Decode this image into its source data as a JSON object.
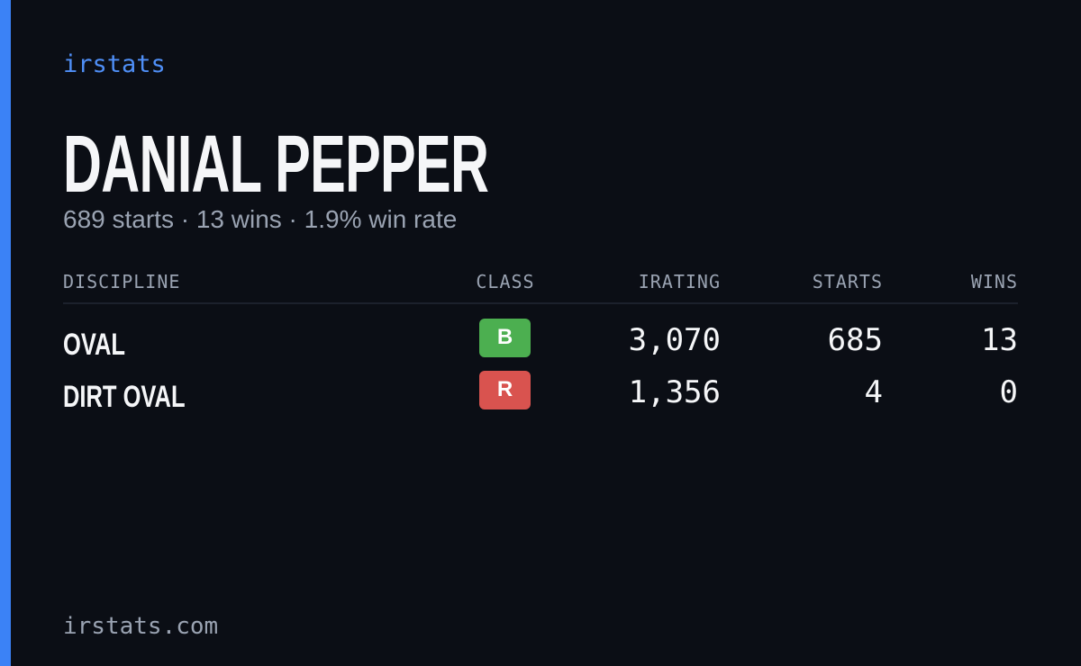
{
  "brand": "irstats",
  "name": "DANIAL PEPPER",
  "summary": "689 starts · 13 wins · 1.9% win rate",
  "table": {
    "headers": [
      "DISCIPLINE",
      "CLASS",
      "IRATING",
      "STARTS",
      "WINS"
    ],
    "rows": [
      {
        "discipline": "OVAL",
        "class": "B",
        "class_color": "#4caf50",
        "irating": "3,070",
        "starts": 685,
        "wins": 13
      },
      {
        "discipline": "DIRT OVAL",
        "class": "R",
        "class_color": "#d9534f",
        "irating": "1,356",
        "starts": 4,
        "wins": 0
      }
    ]
  },
  "footer": "irstats.com"
}
